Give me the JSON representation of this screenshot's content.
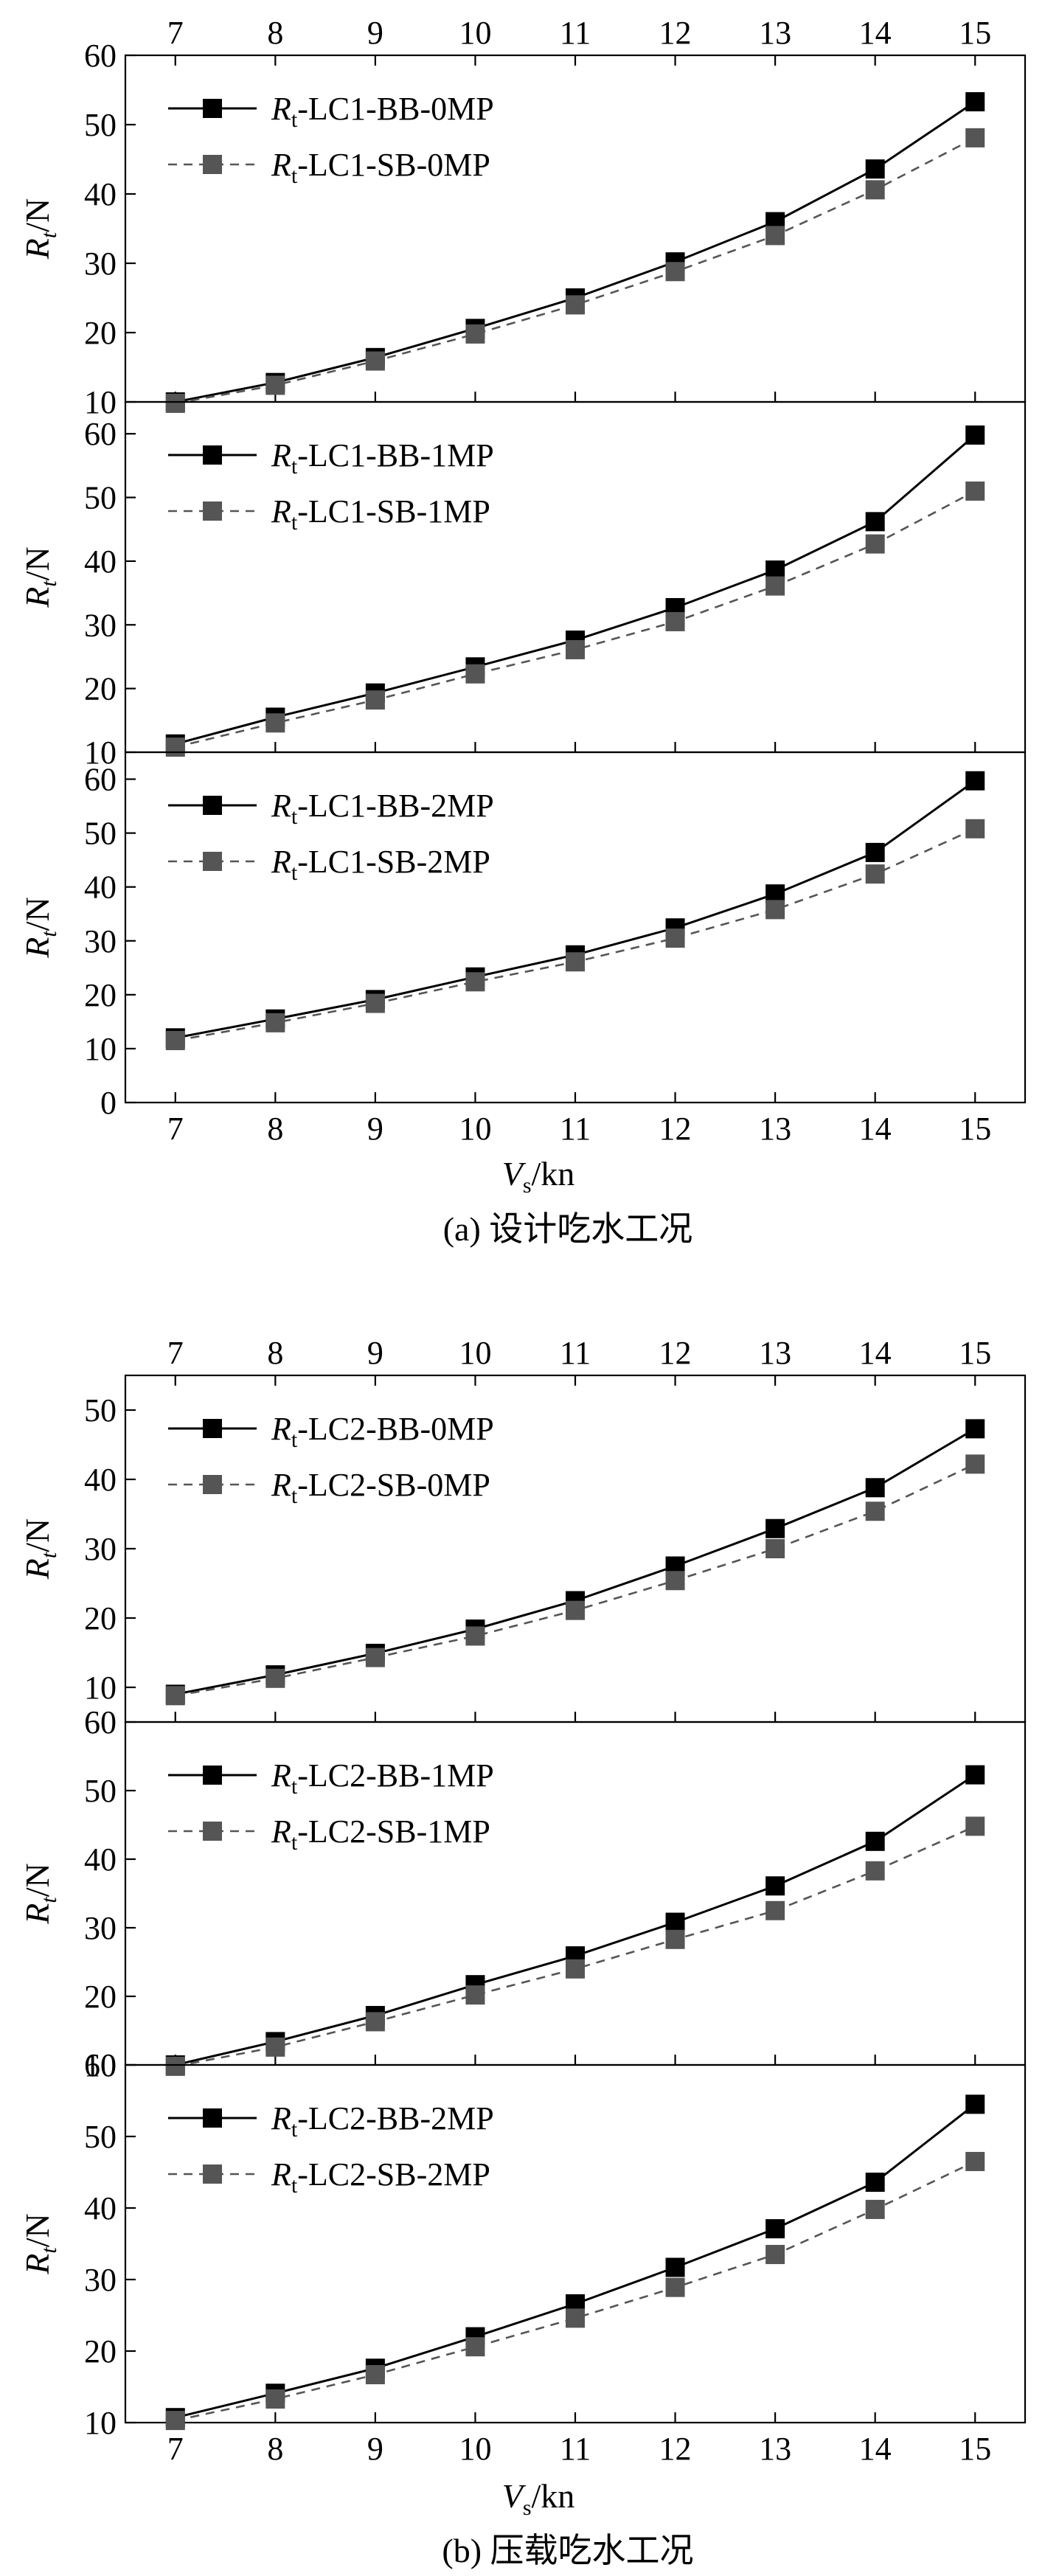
{
  "figures": [
    {
      "caption": "(a) 设计吃水工况",
      "x_axis": {
        "symbol": "V",
        "sub": "s",
        "unit": "/kn"
      },
      "y_axis": {
        "symbol": "R",
        "sub": "t",
        "unit": "/N"
      }
    },
    {
      "caption": "(b) 压载吃水工况",
      "x_axis": {
        "symbol": "V",
        "sub": "s",
        "unit": "/kn"
      },
      "y_axis": {
        "symbol": "R",
        "sub": "t",
        "unit": "/N"
      }
    }
  ],
  "colors": {
    "bb": "#000000",
    "sb": "#555555"
  },
  "chart_data": [
    {
      "type": "line",
      "figure": "a",
      "panel": 1,
      "x": [
        7,
        8,
        9,
        10,
        11,
        12,
        13,
        14,
        15
      ],
      "xlim": [
        6.5,
        15.5
      ],
      "ylim": [
        10,
        60
      ],
      "yticks": [
        10,
        20,
        30,
        40,
        50,
        60
      ],
      "xticks_top": true,
      "xticks_bottom_labels": false,
      "series": [
        {
          "name": "Rt-LC1-BB-0MP",
          "legend_prefix": "R",
          "legend_sub": "t",
          "legend_suffix": "-LC1-BB-0MP",
          "style": "solid",
          "values": [
            10.0,
            12.8,
            16.4,
            20.6,
            25.0,
            30.2,
            36.0,
            43.6,
            53.3
          ]
        },
        {
          "name": "Rt-LC1-SB-0MP",
          "legend_prefix": "R",
          "legend_sub": "t",
          "legend_suffix": "-LC1-SB-0MP",
          "style": "dashed",
          "values": [
            9.8,
            12.4,
            15.9,
            19.8,
            24.0,
            28.8,
            34.0,
            40.6,
            48.1
          ]
        }
      ]
    },
    {
      "type": "line",
      "figure": "a",
      "panel": 2,
      "x": [
        7,
        8,
        9,
        10,
        11,
        12,
        13,
        14,
        15
      ],
      "xlim": [
        6.5,
        15.5
      ],
      "ylim": [
        10,
        65
      ],
      "yticks": [
        10,
        20,
        30,
        40,
        50,
        60
      ],
      "xticks_top": false,
      "xticks_bottom_labels": false,
      "series": [
        {
          "name": "Rt-LC1-BB-1MP",
          "legend_prefix": "R",
          "legend_sub": "t",
          "legend_suffix": "-LC1-BB-1MP",
          "style": "solid",
          "values": [
            11.3,
            15.5,
            19.3,
            23.4,
            27.6,
            32.7,
            38.6,
            46.2,
            59.8
          ]
        },
        {
          "name": "Rt-LC1-SB-1MP",
          "legend_prefix": "R",
          "legend_sub": "t",
          "legend_suffix": "-LC1-SB-1MP",
          "style": "dashed",
          "values": [
            10.8,
            14.6,
            18.2,
            22.3,
            26.1,
            30.5,
            36.1,
            42.7,
            51.0
          ]
        }
      ]
    },
    {
      "type": "line",
      "figure": "a",
      "panel": 3,
      "x": [
        7,
        8,
        9,
        10,
        11,
        12,
        13,
        14,
        15
      ],
      "xlim": [
        6.5,
        15.5
      ],
      "ylim": [
        0,
        65
      ],
      "yticks": [
        0,
        10,
        20,
        30,
        40,
        50,
        60
      ],
      "xticks_top": false,
      "xticks_bottom_labels": true,
      "series": [
        {
          "name": "Rt-LC1-BB-2MP",
          "legend_prefix": "R",
          "legend_sub": "t",
          "legend_suffix": "-LC1-BB-2MP",
          "style": "solid",
          "values": [
            12.0,
            15.5,
            19.1,
            23.3,
            27.4,
            32.4,
            38.7,
            46.4,
            59.7
          ]
        },
        {
          "name": "Rt-LC1-SB-2MP",
          "legend_prefix": "R",
          "legend_sub": "t",
          "legend_suffix": "-LC1-SB-2MP",
          "style": "dashed",
          "values": [
            11.5,
            14.8,
            18.4,
            22.4,
            26.1,
            30.5,
            35.8,
            42.4,
            50.8
          ]
        }
      ]
    },
    {
      "type": "line",
      "figure": "b",
      "panel": 1,
      "x": [
        7,
        8,
        9,
        10,
        11,
        12,
        13,
        14,
        15
      ],
      "xlim": [
        6.5,
        15.5
      ],
      "ylim": [
        5,
        55
      ],
      "yticks": [
        10,
        20,
        30,
        40,
        50
      ],
      "xticks_top": true,
      "xticks_bottom_labels": false,
      "series": [
        {
          "name": "Rt-LC2-BB-0MP",
          "legend_prefix": "R",
          "legend_sub": "t",
          "legend_suffix": "-LC2-BB-0MP",
          "style": "solid",
          "values": [
            9.0,
            11.8,
            14.9,
            18.4,
            22.5,
            27.5,
            32.9,
            38.8,
            47.3
          ]
        },
        {
          "name": "Rt-LC2-SB-0MP",
          "legend_prefix": "R",
          "legend_sub": "t",
          "legend_suffix": "-LC2-SB-0MP",
          "style": "dashed",
          "values": [
            8.8,
            11.3,
            14.3,
            17.4,
            21.1,
            25.4,
            30.0,
            35.4,
            42.2
          ]
        }
      ]
    },
    {
      "type": "line",
      "figure": "b",
      "panel": 2,
      "x": [
        7,
        8,
        9,
        10,
        11,
        12,
        13,
        14,
        15
      ],
      "xlim": [
        6.5,
        15.5
      ],
      "ylim": [
        10,
        60
      ],
      "yticks": [
        10,
        20,
        30,
        40,
        50,
        60
      ],
      "xticks_top": false,
      "xticks_bottom_labels": false,
      "series": [
        {
          "name": "Rt-LC2-BB-1MP",
          "legend_prefix": "R",
          "legend_sub": "t",
          "legend_suffix": "-LC2-BB-1MP",
          "style": "solid",
          "values": [
            10.0,
            13.4,
            17.2,
            21.7,
            25.9,
            30.8,
            36.1,
            42.6,
            52.3
          ]
        },
        {
          "name": "Rt-LC2-SB-1MP",
          "legend_prefix": "R",
          "legend_sub": "t",
          "legend_suffix": "-LC2-SB-1MP",
          "style": "dashed",
          "values": [
            9.8,
            12.6,
            16.3,
            20.2,
            24.0,
            28.3,
            32.5,
            38.3,
            44.8
          ]
        }
      ]
    },
    {
      "type": "line",
      "figure": "b",
      "panel": 3,
      "x": [
        7,
        8,
        9,
        10,
        11,
        12,
        13,
        14,
        15
      ],
      "xlim": [
        6.5,
        15.5
      ],
      "ylim": [
        10,
        60
      ],
      "yticks": [
        10,
        20,
        30,
        40,
        50,
        60
      ],
      "xticks_top": false,
      "xticks_bottom_labels": true,
      "series": [
        {
          "name": "Rt-LC2-BB-2MP",
          "legend_prefix": "R",
          "legend_sub": "t",
          "legend_suffix": "-LC2-BB-2MP",
          "style": "solid",
          "values": [
            10.7,
            14.1,
            17.6,
            22.0,
            26.6,
            31.7,
            37.1,
            43.6,
            54.5
          ]
        },
        {
          "name": "Rt-LC2-SB-2MP",
          "legend_prefix": "R",
          "legend_sub": "t",
          "legend_suffix": "-LC2-SB-2MP",
          "style": "dashed",
          "values": [
            10.3,
            13.3,
            16.7,
            20.6,
            24.6,
            28.9,
            33.5,
            39.8,
            46.5
          ]
        }
      ]
    }
  ]
}
